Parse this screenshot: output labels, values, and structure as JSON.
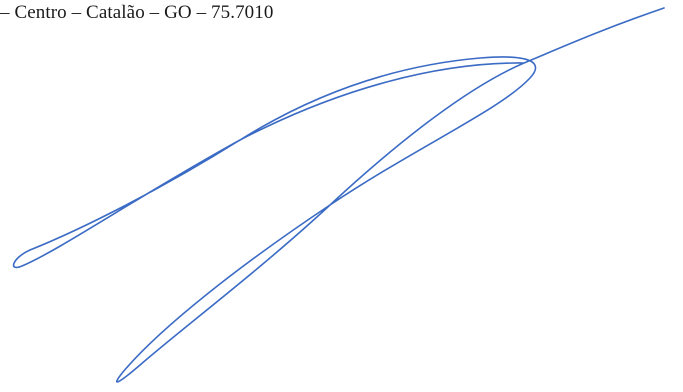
{
  "document": {
    "address_line": "– Centro – Catalão – GO – 75.7010"
  },
  "signature": {
    "ink_color": "#3b6bc4"
  }
}
